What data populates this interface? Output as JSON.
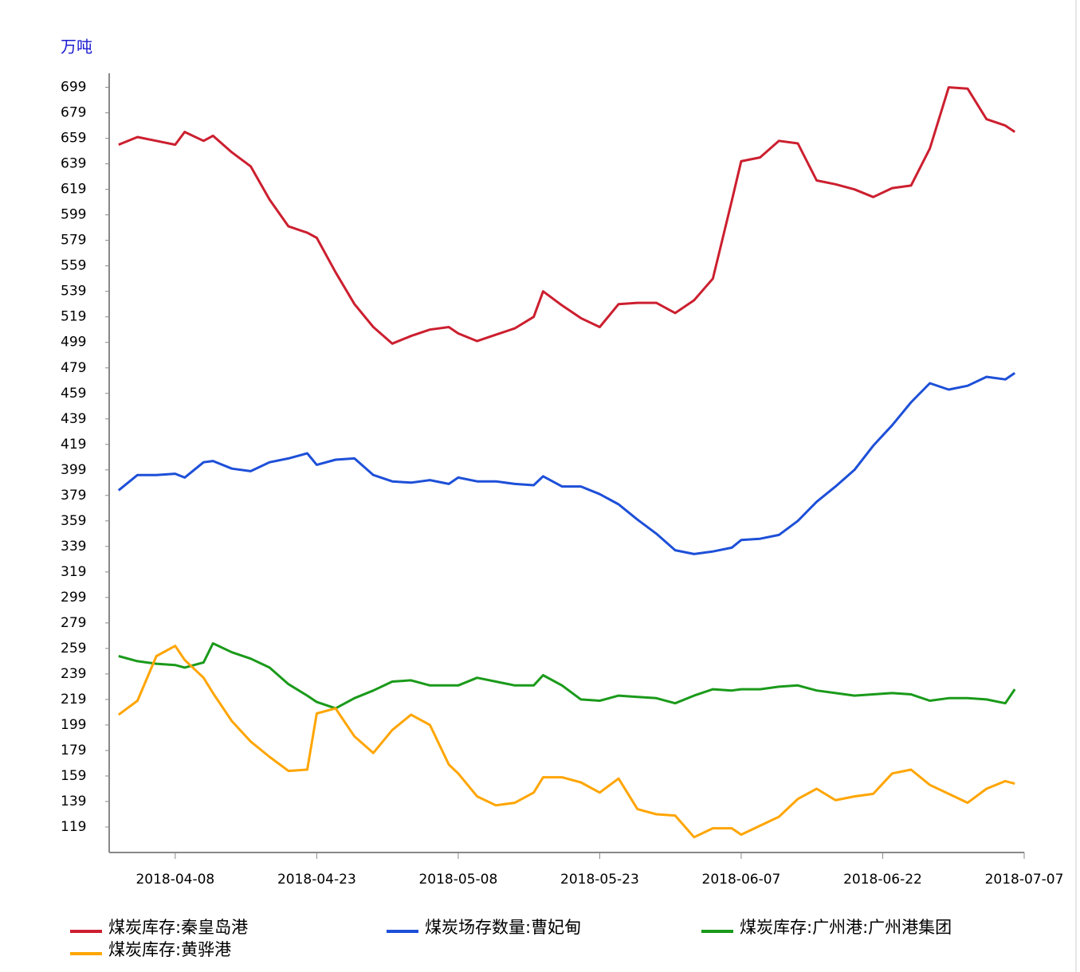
{
  "chart_data": {
    "type": "line",
    "y_unit": "万吨",
    "x": [
      "2018-04-02",
      "2018-04-04",
      "2018-04-06",
      "2018-04-08",
      "2018-04-09",
      "2018-04-11",
      "2018-04-12",
      "2018-04-14",
      "2018-04-16",
      "2018-04-18",
      "2018-04-20",
      "2018-04-22",
      "2018-04-23",
      "2018-04-25",
      "2018-04-27",
      "2018-04-29",
      "2018-05-01",
      "2018-05-03",
      "2018-05-05",
      "2018-05-07",
      "2018-05-08",
      "2018-05-10",
      "2018-05-12",
      "2018-05-14",
      "2018-05-16",
      "2018-05-17",
      "2018-05-19",
      "2018-05-21",
      "2018-05-23",
      "2018-05-25",
      "2018-05-27",
      "2018-05-29",
      "2018-05-31",
      "2018-06-02",
      "2018-06-04",
      "2018-06-06",
      "2018-06-07",
      "2018-06-09",
      "2018-06-11",
      "2018-06-13",
      "2018-06-15",
      "2018-06-17",
      "2018-06-19",
      "2018-06-21",
      "2018-06-23",
      "2018-06-25",
      "2018-06-27",
      "2018-06-29",
      "2018-07-01",
      "2018-07-03",
      "2018-07-05",
      "2018-07-06"
    ],
    "series": [
      {
        "name": "煤炭库存:秦皇岛港",
        "color": "#cc1f2f",
        "values": [
          654,
          660,
          657,
          654,
          664,
          657,
          661,
          648,
          637,
          611,
          590,
          585,
          581,
          554,
          529,
          511,
          498,
          504,
          509,
          511,
          506,
          500,
          505,
          510,
          519,
          539,
          528,
          518,
          511,
          529,
          530,
          530,
          522,
          532,
          549,
          610,
          641,
          644,
          657,
          655,
          626,
          623,
          619,
          613,
          620,
          622,
          651,
          699,
          698,
          674,
          669,
          664
        ]
      },
      {
        "name": "煤炭场存数量:曹妃甸",
        "color": "#1d4fd8",
        "values": [
          383,
          395,
          395,
          396,
          393,
          405,
          406,
          400,
          398,
          405,
          408,
          412,
          403,
          407,
          408,
          395,
          390,
          389,
          391,
          388,
          393,
          390,
          390,
          388,
          387,
          394,
          386,
          386,
          380,
          372,
          360,
          349,
          336,
          333,
          335,
          338,
          344,
          345,
          348,
          359,
          374,
          386,
          399,
          418,
          434,
          452,
          467,
          462,
          465,
          472,
          470,
          475
        ]
      },
      {
        "name": "煤炭库存:广州港:广州港集团",
        "color": "#1a9a1a",
        "values": [
          253,
          249,
          247,
          246,
          244,
          248,
          263,
          256,
          251,
          244,
          231,
          222,
          217,
          212,
          220,
          226,
          233,
          234,
          230,
          230,
          230,
          236,
          233,
          230,
          230,
          238,
          230,
          219,
          218,
          222,
          221,
          220,
          216,
          222,
          227,
          226,
          227,
          227,
          229,
          230,
          226,
          224,
          222,
          223,
          224,
          223,
          218,
          220,
          220,
          219,
          216,
          227
        ]
      },
      {
        "name": "煤炭库存:黄骅港",
        "color": "#ffa500",
        "values": [
          207,
          218,
          253,
          261,
          250,
          236,
          224,
          202,
          186,
          174,
          163,
          164,
          208,
          212,
          190,
          177,
          195,
          207,
          199,
          168,
          161,
          143,
          136,
          138,
          146,
          158,
          158,
          154,
          146,
          157,
          133,
          129,
          128,
          111,
          118,
          118,
          113,
          120,
          127,
          141,
          149,
          140,
          143,
          145,
          161,
          164,
          152,
          145,
          138,
          149,
          155,
          153
        ]
      }
    ],
    "xlim": [
      "2018-04-01",
      "2018-07-07"
    ],
    "xticks": [
      "2018-04-08",
      "2018-04-23",
      "2018-05-08",
      "2018-05-23",
      "2018-06-07",
      "2018-06-22",
      "2018-07-07"
    ],
    "ylim": [
      99,
      710
    ],
    "yticks": [
      119,
      139,
      159,
      179,
      199,
      219,
      239,
      259,
      279,
      299,
      319,
      339,
      359,
      379,
      399,
      419,
      439,
      459,
      479,
      499,
      519,
      539,
      559,
      579,
      599,
      619,
      639,
      659,
      679,
      699
    ],
    "grid": false
  }
}
